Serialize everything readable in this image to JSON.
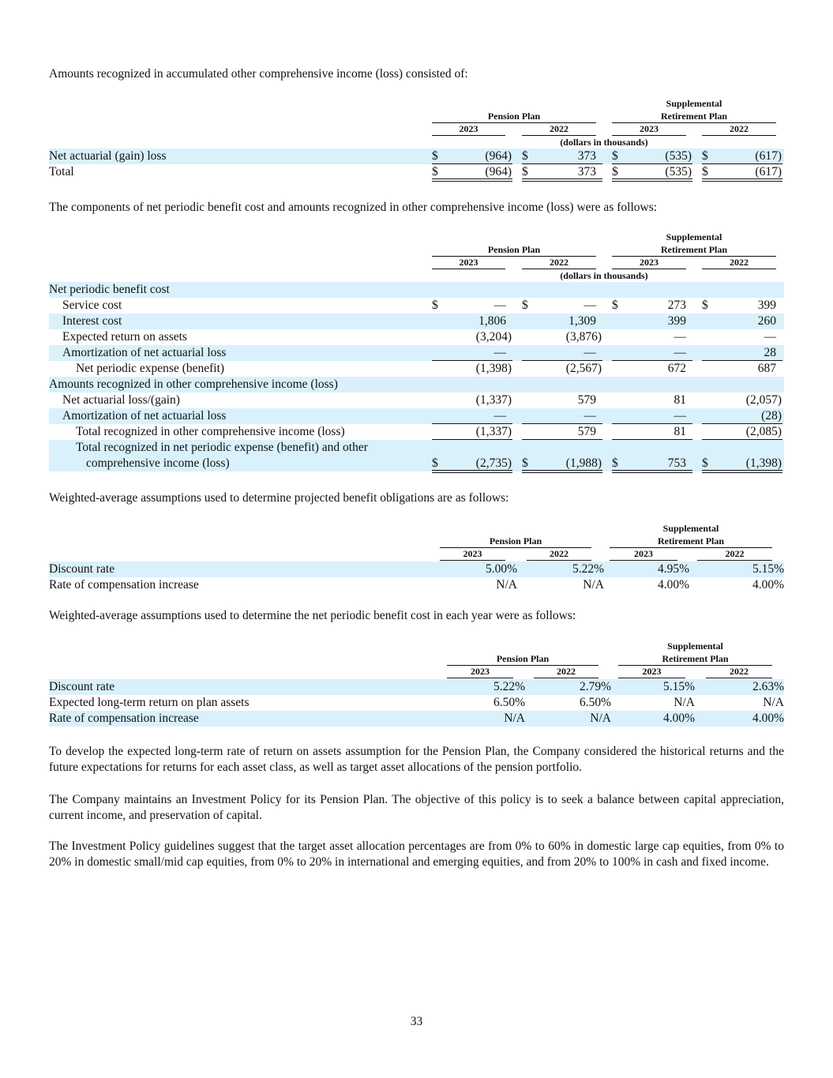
{
  "intro_1": "Amounts recognized in accumulated other comprehensive income (loss) consisted of:",
  "table_1": {
    "header": {
      "pension_plan": "Pension Plan",
      "supplemental_plan": [
        "Supplemental",
        "Retirement Plan"
      ],
      "years": [
        "2023",
        "2022",
        "2023",
        "2022"
      ],
      "units": "(dollars in thousands)"
    },
    "currency": "$",
    "rows": [
      {
        "label": "Net actuarial (gain) loss",
        "values": [
          "(964)",
          "373",
          "(535)",
          "(617)"
        ]
      },
      {
        "label": "Total",
        "values": [
          "(964)",
          "373",
          "(535)",
          "(617)"
        ]
      }
    ]
  },
  "intro_2": "The components of net periodic benefit cost and amounts recognized in other comprehensive income (loss) were as follows:",
  "table_2": {
    "header": {
      "pension_plan": "Pension Plan",
      "supplemental_plan": [
        "Supplemental",
        "Retirement Plan"
      ],
      "years": [
        "2023",
        "2022",
        "2023",
        "2022"
      ],
      "units": "(dollars in thousands)"
    },
    "currency": "$",
    "rows": [
      {
        "label": "Net periodic benefit cost"
      },
      {
        "label": "Service cost",
        "values": [
          "—",
          "—",
          "273",
          "399"
        ]
      },
      {
        "label": "Interest cost",
        "values": [
          "1,806",
          "1,309",
          "399",
          "260"
        ]
      },
      {
        "label": "Expected return on assets",
        "values": [
          "(3,204)",
          "(3,876)",
          "—",
          "—"
        ]
      },
      {
        "label": "Amortization of net actuarial loss",
        "values": [
          "—",
          "—",
          "—",
          "28"
        ]
      },
      {
        "label": "Net periodic expense (benefit)",
        "values": [
          "(1,398)",
          "(2,567)",
          "672",
          "687"
        ]
      },
      {
        "label": "Amounts recognized in other comprehensive income (loss)"
      },
      {
        "label": "Net actuarial loss/(gain)",
        "values": [
          "(1,337)",
          "579",
          "81",
          "(2,057)"
        ]
      },
      {
        "label": "Amortization of net actuarial loss",
        "values": [
          "—",
          "—",
          "—",
          "(28)"
        ]
      },
      {
        "label": "Total recognized in other comprehensive income (loss)",
        "values": [
          "(1,337)",
          "579",
          "81",
          "(2,085)"
        ]
      },
      {
        "label": "Total recognized in net periodic expense (benefit) and other comprehensive income (loss)",
        "values": [
          "(2,735)",
          "(1,988)",
          "753",
          "(1,398)"
        ]
      }
    ]
  },
  "intro_3": "Weighted-average assumptions used to determine projected benefit obligations are as follows:",
  "table_3": {
    "header": {
      "pension_plan": "Pension Plan",
      "supplemental_plan": [
        "Supplemental",
        "Retirement Plan"
      ],
      "years": [
        "2023",
        "2022",
        "2023",
        "2022"
      ]
    },
    "rows": [
      {
        "label": "Discount rate",
        "values": [
          "5.00%",
          "5.22%",
          "4.95%",
          "5.15%"
        ]
      },
      {
        "label": "Rate of compensation increase",
        "values": [
          "N/A",
          "N/A",
          "4.00%",
          "4.00%"
        ]
      }
    ]
  },
  "intro_4": "Weighted-average assumptions used to determine the net periodic benefit cost in each year were as follows:",
  "table_4": {
    "header": {
      "pension_plan": "Pension Plan",
      "supplemental_plan": [
        "Supplemental",
        "Retirement Plan"
      ],
      "years": [
        "2023",
        "2022",
        "2023",
        "2022"
      ]
    },
    "rows": [
      {
        "label": "Discount rate",
        "values": [
          "5.22%",
          "2.79%",
          "5.15%",
          "2.63%"
        ]
      },
      {
        "label": "Expected long-term return on plan assets",
        "values": [
          "6.50%",
          "6.50%",
          "N/A",
          "N/A"
        ]
      },
      {
        "label": "Rate of compensation increase",
        "values": [
          "N/A",
          "N/A",
          "4.00%",
          "4.00%"
        ]
      }
    ]
  },
  "paragraphs": [
    "To develop the expected long-term rate of return on assets assumption for the Pension Plan, the Company considered the historical returns and the future expectations for returns for each asset class, as well as target asset allocations of the pension portfolio.",
    "The Company maintains an Investment Policy for its Pension Plan. The objective of this policy is to seek a balance between capital appreciation, current income, and preservation of capital.",
    "The Investment Policy guidelines suggest that the target asset allocation percentages are from 0% to 60% in domestic large cap equities, from 0% to 20% in domestic small/mid cap equities, from 0% to 20% in international and emerging equities, and from 20% to 100% in cash and fixed income."
  ],
  "page_number": "33"
}
